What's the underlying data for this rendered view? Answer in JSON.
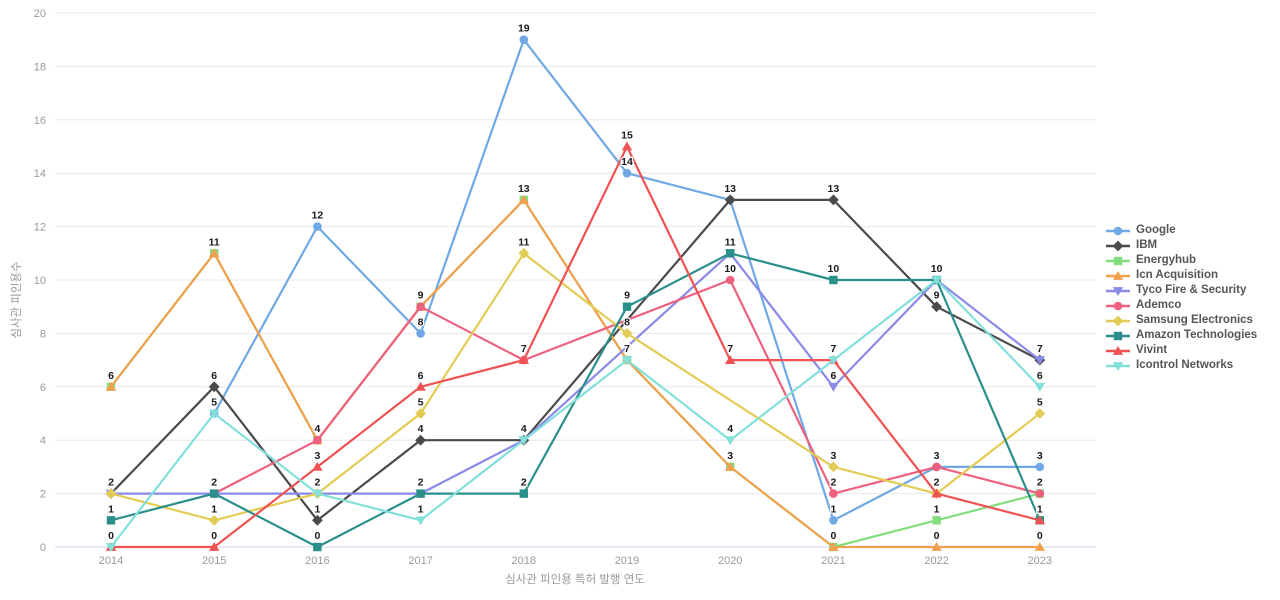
{
  "chart_data": {
    "type": "line",
    "x": [
      2014,
      2015,
      2016,
      2017,
      2018,
      2019,
      2020,
      2021,
      2022,
      2023
    ],
    "series": [
      {
        "name": "Google",
        "color": "#6FA8E4",
        "marker": "circle",
        "values": [
          null,
          5,
          12,
          8,
          19,
          14,
          13,
          1,
          3,
          3
        ]
      },
      {
        "name": "IBM",
        "color": "#4A4A4A",
        "marker": "diamond",
        "values": [
          2,
          6,
          1,
          4,
          4,
          null,
          13,
          13,
          9,
          7
        ]
      },
      {
        "name": "Energyhub",
        "color": "#82DE7C",
        "marker": "square",
        "values": [
          6,
          11,
          4,
          9,
          13,
          7,
          3,
          0,
          1,
          2
        ]
      },
      {
        "name": "Icn Acquisition",
        "color": "#F0A04E",
        "marker": "triangle-up",
        "values": [
          6,
          11,
          4,
          9,
          13,
          7,
          3,
          0,
          0,
          0
        ]
      },
      {
        "name": "Tyco Fire & Security",
        "color": "#8A8AE8",
        "marker": "triangle-down",
        "values": [
          2,
          2,
          2,
          2,
          4,
          null,
          11,
          6,
          10,
          7
        ]
      },
      {
        "name": "Ademco",
        "color": "#ED617F",
        "marker": "circle",
        "values": [
          null,
          2,
          4,
          9,
          7,
          null,
          10,
          2,
          3,
          2
        ]
      },
      {
        "name": "Samsung Electronics",
        "color": "#E3CC55",
        "marker": "diamond",
        "values": [
          2,
          1,
          2,
          5,
          11,
          8,
          null,
          3,
          2,
          5
        ]
      },
      {
        "name": "Amazon Technologies",
        "color": "#2A8F8A",
        "marker": "square",
        "values": [
          1,
          2,
          0,
          2,
          2,
          9,
          11,
          10,
          10,
          1
        ]
      },
      {
        "name": "Vivint",
        "color": "#EF5252",
        "marker": "triangle-up",
        "values": [
          0,
          0,
          3,
          6,
          7,
          15,
          7,
          7,
          2,
          1
        ]
      },
      {
        "name": "Icontrol Networks",
        "color": "#82E0DA",
        "marker": "triangle-down",
        "values": [
          0,
          5,
          2,
          1,
          4,
          7,
          4,
          7,
          10,
          6
        ]
      }
    ],
    "xlabel": "심사관 피인용 특허 발행 연도",
    "ylabel": "심사관 피인용수",
    "ylim": [
      0,
      20
    ],
    "ytick_step": 2,
    "yticks": [
      0,
      2,
      4,
      6,
      8,
      10,
      12,
      14,
      16,
      18,
      20
    ],
    "grid": true,
    "legend_position": "right",
    "colors": {
      "grid_line": "#E8E8E8",
      "zero_line": "#CBD8EC",
      "tick_label": "#999999",
      "axis_title": "#999999",
      "data_label": "#1A1A1A",
      "legend_text": "#555555",
      "background": "#FFFFFF"
    }
  }
}
